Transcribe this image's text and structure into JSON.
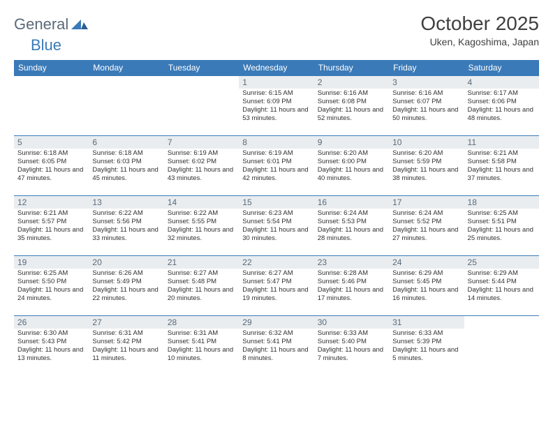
{
  "brand": {
    "word1": "General",
    "word2": "Blue"
  },
  "title": "October 2025",
  "location": "Uken, Kagoshima, Japan",
  "colors": {
    "header_bg": "#3a7ab8",
    "header_text": "#ffffff",
    "daynum_bg": "#e9edf0",
    "daynum_text": "#5a6a78",
    "border": "#3a7ab8",
    "body_text": "#303030"
  },
  "day_headers": [
    "Sunday",
    "Monday",
    "Tuesday",
    "Wednesday",
    "Thursday",
    "Friday",
    "Saturday"
  ],
  "weeks": [
    [
      null,
      null,
      null,
      {
        "n": "1",
        "sr": "6:15 AM",
        "ss": "6:09 PM",
        "dl": "11 hours and 53 minutes."
      },
      {
        "n": "2",
        "sr": "6:16 AM",
        "ss": "6:08 PM",
        "dl": "11 hours and 52 minutes."
      },
      {
        "n": "3",
        "sr": "6:16 AM",
        "ss": "6:07 PM",
        "dl": "11 hours and 50 minutes."
      },
      {
        "n": "4",
        "sr": "6:17 AM",
        "ss": "6:06 PM",
        "dl": "11 hours and 48 minutes."
      }
    ],
    [
      {
        "n": "5",
        "sr": "6:18 AM",
        "ss": "6:05 PM",
        "dl": "11 hours and 47 minutes."
      },
      {
        "n": "6",
        "sr": "6:18 AM",
        "ss": "6:03 PM",
        "dl": "11 hours and 45 minutes."
      },
      {
        "n": "7",
        "sr": "6:19 AM",
        "ss": "6:02 PM",
        "dl": "11 hours and 43 minutes."
      },
      {
        "n": "8",
        "sr": "6:19 AM",
        "ss": "6:01 PM",
        "dl": "11 hours and 42 minutes."
      },
      {
        "n": "9",
        "sr": "6:20 AM",
        "ss": "6:00 PM",
        "dl": "11 hours and 40 minutes."
      },
      {
        "n": "10",
        "sr": "6:20 AM",
        "ss": "5:59 PM",
        "dl": "11 hours and 38 minutes."
      },
      {
        "n": "11",
        "sr": "6:21 AM",
        "ss": "5:58 PM",
        "dl": "11 hours and 37 minutes."
      }
    ],
    [
      {
        "n": "12",
        "sr": "6:21 AM",
        "ss": "5:57 PM",
        "dl": "11 hours and 35 minutes."
      },
      {
        "n": "13",
        "sr": "6:22 AM",
        "ss": "5:56 PM",
        "dl": "11 hours and 33 minutes."
      },
      {
        "n": "14",
        "sr": "6:22 AM",
        "ss": "5:55 PM",
        "dl": "11 hours and 32 minutes."
      },
      {
        "n": "15",
        "sr": "6:23 AM",
        "ss": "5:54 PM",
        "dl": "11 hours and 30 minutes."
      },
      {
        "n": "16",
        "sr": "6:24 AM",
        "ss": "5:53 PM",
        "dl": "11 hours and 28 minutes."
      },
      {
        "n": "17",
        "sr": "6:24 AM",
        "ss": "5:52 PM",
        "dl": "11 hours and 27 minutes."
      },
      {
        "n": "18",
        "sr": "6:25 AM",
        "ss": "5:51 PM",
        "dl": "11 hours and 25 minutes."
      }
    ],
    [
      {
        "n": "19",
        "sr": "6:25 AM",
        "ss": "5:50 PM",
        "dl": "11 hours and 24 minutes."
      },
      {
        "n": "20",
        "sr": "6:26 AM",
        "ss": "5:49 PM",
        "dl": "11 hours and 22 minutes."
      },
      {
        "n": "21",
        "sr": "6:27 AM",
        "ss": "5:48 PM",
        "dl": "11 hours and 20 minutes."
      },
      {
        "n": "22",
        "sr": "6:27 AM",
        "ss": "5:47 PM",
        "dl": "11 hours and 19 minutes."
      },
      {
        "n": "23",
        "sr": "6:28 AM",
        "ss": "5:46 PM",
        "dl": "11 hours and 17 minutes."
      },
      {
        "n": "24",
        "sr": "6:29 AM",
        "ss": "5:45 PM",
        "dl": "11 hours and 16 minutes."
      },
      {
        "n": "25",
        "sr": "6:29 AM",
        "ss": "5:44 PM",
        "dl": "11 hours and 14 minutes."
      }
    ],
    [
      {
        "n": "26",
        "sr": "6:30 AM",
        "ss": "5:43 PM",
        "dl": "11 hours and 13 minutes."
      },
      {
        "n": "27",
        "sr": "6:31 AM",
        "ss": "5:42 PM",
        "dl": "11 hours and 11 minutes."
      },
      {
        "n": "28",
        "sr": "6:31 AM",
        "ss": "5:41 PM",
        "dl": "11 hours and 10 minutes."
      },
      {
        "n": "29",
        "sr": "6:32 AM",
        "ss": "5:41 PM",
        "dl": "11 hours and 8 minutes."
      },
      {
        "n": "30",
        "sr": "6:33 AM",
        "ss": "5:40 PM",
        "dl": "11 hours and 7 minutes."
      },
      {
        "n": "31",
        "sr": "6:33 AM",
        "ss": "5:39 PM",
        "dl": "11 hours and 5 minutes."
      },
      null
    ]
  ],
  "labels": {
    "sunrise": "Sunrise: ",
    "sunset": "Sunset: ",
    "daylight": "Daylight: "
  }
}
